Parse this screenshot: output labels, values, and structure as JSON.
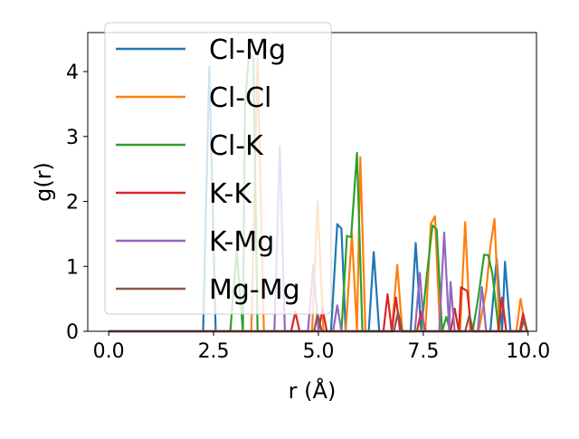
{
  "chart_data": {
    "type": "line",
    "xlabel": "r (Å)",
    "ylabel": "g(r)",
    "xlim": [
      -0.5,
      10.2
    ],
    "ylim": [
      0,
      4.6
    ],
    "xticks": [
      0.0,
      2.5,
      5.0,
      7.5,
      10.0
    ],
    "xtick_labels": [
      "0.0",
      "2.5",
      "5.0",
      "7.5",
      "10.0"
    ],
    "yticks": [
      0,
      1,
      2,
      3,
      4
    ],
    "ytick_labels": [
      "0",
      "1",
      "2",
      "3",
      "4"
    ],
    "grid": false,
    "legend_position": "upper-left",
    "series": [
      {
        "name": "Cl-Mg",
        "color": "#1f77b4",
        "points": [
          [
            0,
            0
          ],
          [
            2.25,
            0
          ],
          [
            2.4,
            4.08
          ],
          [
            2.55,
            0
          ],
          [
            5.3,
            0
          ],
          [
            5.45,
            1.65
          ],
          [
            5.55,
            1.58
          ],
          [
            5.65,
            0
          ],
          [
            6.2,
            0
          ],
          [
            6.32,
            1.22
          ],
          [
            6.45,
            0
          ],
          [
            7.2,
            0
          ],
          [
            7.32,
            1.36
          ],
          [
            7.45,
            0
          ],
          [
            9.1,
            0
          ],
          [
            9.25,
            1.12
          ],
          [
            9.38,
            0
          ],
          [
            9.45,
            1.07
          ],
          [
            9.58,
            0
          ],
          [
            10.0,
            0
          ]
        ]
      },
      {
        "name": "Cl-Cl",
        "color": "#ff7f0e",
        "points": [
          [
            0,
            0
          ],
          [
            3.4,
            0
          ],
          [
            3.55,
            4.2
          ],
          [
            3.7,
            0
          ],
          [
            4.85,
            0
          ],
          [
            4.98,
            2.0
          ],
          [
            5.12,
            0
          ],
          [
            5.65,
            0
          ],
          [
            5.8,
            1.5
          ],
          [
            5.92,
            0
          ],
          [
            6.0,
            2.68
          ],
          [
            6.12,
            0
          ],
          [
            6.75,
            0
          ],
          [
            6.88,
            1.02
          ],
          [
            7.0,
            0
          ],
          [
            7.55,
            0
          ],
          [
            7.68,
            1.66
          ],
          [
            7.78,
            1.77
          ],
          [
            7.9,
            0
          ],
          [
            8.38,
            0
          ],
          [
            8.5,
            1.68
          ],
          [
            8.62,
            0
          ],
          [
            8.82,
            0
          ],
          [
            9.0,
            0.62
          ],
          [
            9.1,
            1.3
          ],
          [
            9.2,
            1.73
          ],
          [
            9.32,
            0
          ],
          [
            9.72,
            0
          ],
          [
            9.82,
            0.5
          ],
          [
            9.95,
            0
          ],
          [
            10.0,
            0
          ]
        ]
      },
      {
        "name": "Cl-K",
        "color": "#2ca02c",
        "points": [
          [
            0,
            0
          ],
          [
            2.9,
            0
          ],
          [
            3.05,
            1.25
          ],
          [
            3.2,
            0
          ],
          [
            3.25,
            3.5
          ],
          [
            3.35,
            4.3
          ],
          [
            3.45,
            4.2
          ],
          [
            3.55,
            0
          ],
          [
            5.55,
            0
          ],
          [
            5.68,
            1.47
          ],
          [
            5.78,
            1.45
          ],
          [
            5.92,
            2.75
          ],
          [
            6.05,
            0
          ],
          [
            7.45,
            0
          ],
          [
            7.58,
            0.82
          ],
          [
            7.72,
            1.63
          ],
          [
            7.82,
            1.57
          ],
          [
            7.95,
            0
          ],
          [
            8.05,
            0.22
          ],
          [
            8.15,
            0
          ],
          [
            8.68,
            0
          ],
          [
            8.82,
            0.55
          ],
          [
            8.95,
            1.18
          ],
          [
            9.05,
            1.17
          ],
          [
            9.15,
            0.88
          ],
          [
            9.3,
            0
          ],
          [
            10.0,
            0
          ]
        ]
      },
      {
        "name": "K-K",
        "color": "#d62728",
        "points": [
          [
            0,
            0
          ],
          [
            4.35,
            0
          ],
          [
            4.45,
            0.3
          ],
          [
            4.55,
            0
          ],
          [
            5.0,
            0
          ],
          [
            5.1,
            0.35
          ],
          [
            5.2,
            0
          ],
          [
            6.55,
            0
          ],
          [
            6.65,
            0.57
          ],
          [
            6.75,
            0
          ],
          [
            6.85,
            0.52
          ],
          [
            6.95,
            0
          ],
          [
            7.35,
            0
          ],
          [
            7.45,
            0.3
          ],
          [
            7.55,
            0
          ],
          [
            8.15,
            0
          ],
          [
            8.25,
            0.35
          ],
          [
            8.35,
            0
          ],
          [
            8.4,
            0.68
          ],
          [
            8.55,
            0.62
          ],
          [
            8.65,
            0
          ],
          [
            9.28,
            0
          ],
          [
            9.38,
            0.52
          ],
          [
            9.48,
            0
          ],
          [
            9.8,
            0
          ],
          [
            9.88,
            0.27
          ],
          [
            9.98,
            0
          ],
          [
            10.0,
            0
          ]
        ]
      },
      {
        "name": "K-Mg",
        "color": "#9467bd",
        "points": [
          [
            0,
            0
          ],
          [
            3.95,
            0
          ],
          [
            4.08,
            2.85
          ],
          [
            4.2,
            0
          ],
          [
            4.75,
            0
          ],
          [
            4.88,
            1.02
          ],
          [
            5.0,
            0
          ],
          [
            5.35,
            0
          ],
          [
            5.45,
            0.4
          ],
          [
            5.55,
            0
          ],
          [
            7.3,
            0
          ],
          [
            7.42,
            0.9
          ],
          [
            7.52,
            0
          ],
          [
            7.88,
            0
          ],
          [
            8.0,
            1.52
          ],
          [
            8.12,
            0
          ],
          [
            8.15,
            0.76
          ],
          [
            8.25,
            0
          ],
          [
            8.8,
            0
          ],
          [
            8.9,
            0.68
          ],
          [
            9.0,
            0
          ],
          [
            10.0,
            0
          ]
        ]
      },
      {
        "name": "Mg-Mg",
        "color": "#8c564b",
        "points": [
          [
            0,
            0
          ],
          [
            4.9,
            0
          ],
          [
            4.98,
            0.27
          ],
          [
            5.08,
            0
          ],
          [
            6.8,
            0
          ],
          [
            6.9,
            0.3
          ],
          [
            7.0,
            0
          ],
          [
            8.5,
            0
          ],
          [
            8.6,
            0.25
          ],
          [
            8.7,
            0
          ],
          [
            9.82,
            0
          ],
          [
            9.9,
            0.17
          ],
          [
            9.98,
            0
          ],
          [
            10.0,
            0
          ]
        ]
      }
    ]
  }
}
